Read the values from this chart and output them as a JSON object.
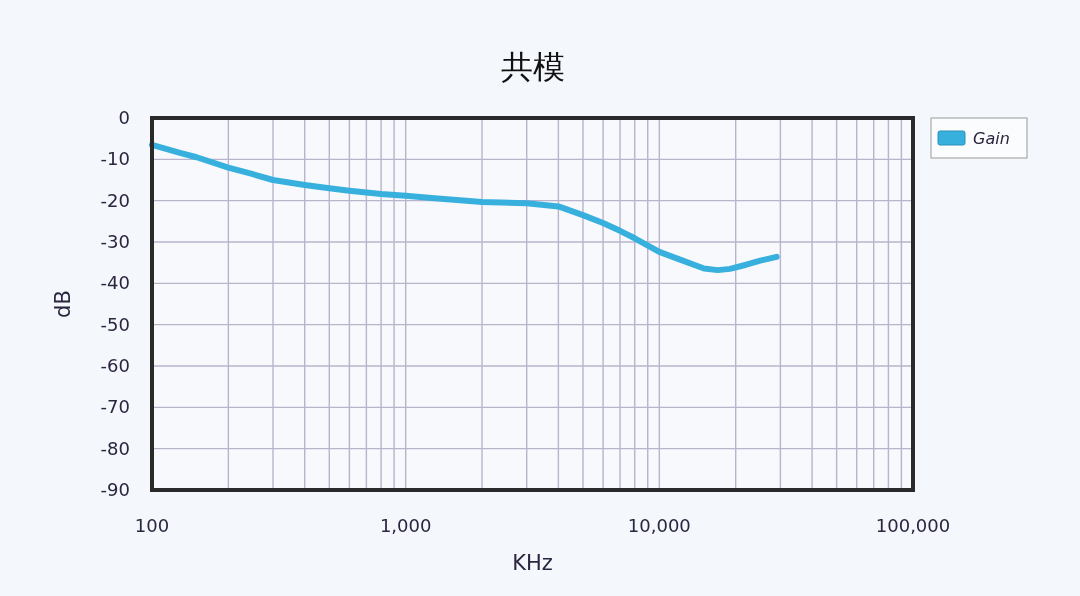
{
  "chart_data": {
    "type": "line",
    "title": "共模",
    "xlabel": "KHz",
    "ylabel": "dB",
    "log": "x",
    "x": [
      100,
      130,
      150,
      200,
      250,
      300,
      400,
      500,
      600,
      800,
      1000,
      1300,
      1500,
      2000,
      3000,
      4000,
      5000,
      6000,
      7000,
      8000,
      10000,
      12000,
      15000,
      17000,
      19000,
      22000,
      25000,
      29000
    ],
    "series": [
      {
        "name": "Gain",
        "color": "#38b0de",
        "values": [
          -6.5,
          -8.5,
          -9.5,
          -12,
          -13.6,
          -15,
          -16.2,
          -17,
          -17.6,
          -18.4,
          -18.8,
          -19.4,
          -19.7,
          -20.3,
          -20.6,
          -21.4,
          -23.5,
          -25.4,
          -27.3,
          -29.1,
          -32.4,
          -34.2,
          -36.4,
          -36.8,
          -36.5,
          -35.5,
          -34.5,
          -33.6
        ]
      }
    ],
    "xlim": [
      100,
      100000
    ],
    "xticks": [
      {
        "value": 100,
        "label": "100"
      },
      {
        "value": 1000,
        "label": "1,000"
      },
      {
        "value": 10000,
        "label": "10,000"
      },
      {
        "value": 100000,
        "label": "100,000"
      }
    ],
    "ylim": [
      -90,
      0
    ],
    "yticks": [
      -90,
      -80,
      -70,
      -60,
      -50,
      -40,
      -30,
      -20,
      -10,
      0
    ],
    "grid": true,
    "legend": "top right",
    "marker": "none",
    "line_style": "solid"
  }
}
